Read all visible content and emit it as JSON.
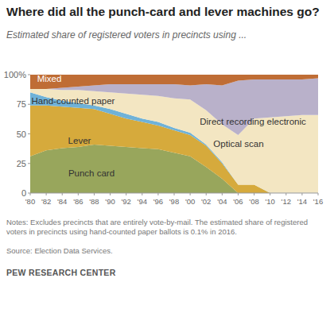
{
  "chart_data": {
    "type": "area",
    "stacked": true,
    "title": "Where did all the punch-card and lever machines go?",
    "subtitle": "Estimated share of registered voters in precincts using ...",
    "note": "Notes: Excludes precincts that are entirely vote-by-mail. The estimated share of registered voters in precincts using hand-counted paper ballots is 0.1% in 2016.",
    "source": "Source: Election Data Services.",
    "credit": "PEW RESEARCH CENTER",
    "x": [
      1980,
      1982,
      1984,
      1986,
      1988,
      1990,
      1992,
      1994,
      1996,
      1998,
      2000,
      2002,
      2004,
      2006,
      2008,
      2010,
      2012,
      2014,
      2016
    ],
    "xlim": [
      1980,
      2016
    ],
    "xticks": [
      {
        "value": 1980,
        "label": "'80"
      },
      {
        "value": 1982,
        "label": "'82"
      },
      {
        "value": 1984,
        "label": "'84"
      },
      {
        "value": 1986,
        "label": "'86"
      },
      {
        "value": 1988,
        "label": "'88"
      },
      {
        "value": 1990,
        "label": "'90"
      },
      {
        "value": 1992,
        "label": "'92"
      },
      {
        "value": 1994,
        "label": "'94"
      },
      {
        "value": 1996,
        "label": "'96"
      },
      {
        "value": 1998,
        "label": "'98"
      },
      {
        "value": 2000,
        "label": "'00"
      },
      {
        "value": 2002,
        "label": "'02"
      },
      {
        "value": 2004,
        "label": "'04"
      },
      {
        "value": 2006,
        "label": "'06"
      },
      {
        "value": 2008,
        "label": "'08"
      },
      {
        "value": 2010,
        "label": "'10"
      },
      {
        "value": 2012,
        "label": "'12"
      },
      {
        "value": 2014,
        "label": "'14"
      },
      {
        "value": 2016,
        "label": "'16"
      }
    ],
    "ylim": [
      0,
      100
    ],
    "yticks": [
      0,
      25,
      50,
      75,
      {
        "value": 100,
        "label": "100%"
      }
    ],
    "grid": false,
    "series": [
      {
        "name": "Punch card",
        "color": "#98a65c",
        "values": [
          31,
          36,
          38,
          39,
          41,
          40,
          39,
          38,
          37,
          34,
          31,
          22,
          12,
          0,
          0,
          0,
          0,
          0,
          0
        ]
      },
      {
        "name": "Lever",
        "color": "#d6aa3c",
        "values": [
          43,
          38,
          35,
          33,
          30,
          27,
          24,
          22,
          20,
          19,
          18,
          18,
          13,
          7,
          7,
          0,
          0,
          0,
          0
        ]
      },
      {
        "name": "Hand-counted paper",
        "color": "#6fb2d8",
        "values": [
          11,
          7,
          5,
          4,
          3,
          4,
          4,
          3,
          3,
          2,
          2,
          1,
          1,
          0.1,
          0.1,
          0.1,
          0.1,
          0.1,
          0.1
        ]
      },
      {
        "name": "Optical scan",
        "color": "#f3e6c2",
        "values": [
          3,
          7,
          9,
          11,
          12,
          14,
          17,
          20,
          22,
          25,
          28,
          29,
          32,
          41.9,
          55.9,
          63.9,
          64.9,
          65.9,
          65.9
        ]
      },
      {
        "name": "Direct recording electronic",
        "color": "#b9b1ca",
        "values": [
          0,
          0,
          2,
          3,
          5,
          7,
          8,
          9,
          10,
          12,
          12,
          22,
          33,
          46,
          33,
          32,
          31,
          30,
          31
        ]
      },
      {
        "name": "Mixed",
        "color": "#bf6d35",
        "values": [
          12,
          12,
          11,
          10,
          9,
          8,
          8,
          8,
          8,
          8,
          9,
          8,
          9,
          5,
          4,
          4,
          4,
          4,
          3
        ]
      }
    ]
  }
}
